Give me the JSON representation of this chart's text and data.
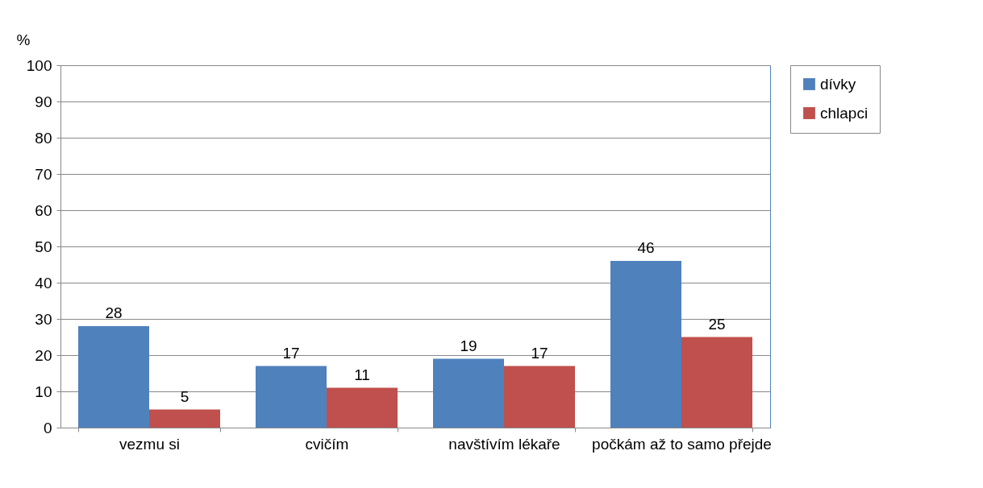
{
  "chart_data": {
    "type": "bar",
    "ylabel": "%",
    "categories": [
      "vezmu si",
      "cvičím",
      "navštívím lékaře",
      "počkám až to samo přejde"
    ],
    "series": [
      {
        "name": "dívky",
        "color": "#4f81bd",
        "values": [
          28,
          17,
          19,
          46
        ]
      },
      {
        "name": "chlapci",
        "color": "#c0504d",
        "values": [
          5,
          11,
          17,
          25
        ]
      }
    ],
    "ylim": [
      0,
      100
    ],
    "yticks": [
      0,
      10,
      20,
      30,
      40,
      50,
      60,
      70,
      80,
      90,
      100
    ],
    "grid": "y",
    "legend": "right",
    "data_labels": true
  }
}
